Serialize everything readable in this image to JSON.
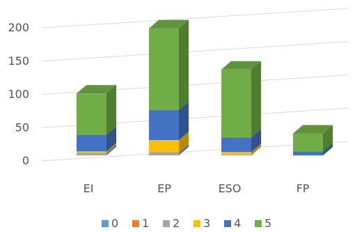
{
  "chart_data": {
    "type": "bar",
    "stacked": true,
    "three_d": true,
    "categories": [
      "EI",
      "EP",
      "ESO",
      "FP"
    ],
    "yticks": [
      "0",
      "50",
      "100",
      "150",
      "200"
    ],
    "ylim": [
      0,
      200
    ],
    "grid": true,
    "legend_position": "bottom",
    "series": [
      {
        "name": "0",
        "color": "#5b9bd5",
        "values": [
          0,
          0,
          0,
          0
        ]
      },
      {
        "name": "1",
        "color": "#ed7d31",
        "values": [
          0,
          0,
          0,
          0
        ]
      },
      {
        "name": "2",
        "color": "#a5a5a5",
        "values": [
          4,
          5,
          1,
          0
        ]
      },
      {
        "name": "3",
        "color": "#ffc000",
        "values": [
          2,
          18,
          4,
          0
        ]
      },
      {
        "name": "4",
        "color": "#4472c4",
        "values": [
          25,
          45,
          22,
          6
        ]
      },
      {
        "name": "5",
        "color": "#70ad47",
        "values": [
          62,
          123,
          102,
          27
        ]
      }
    ]
  }
}
